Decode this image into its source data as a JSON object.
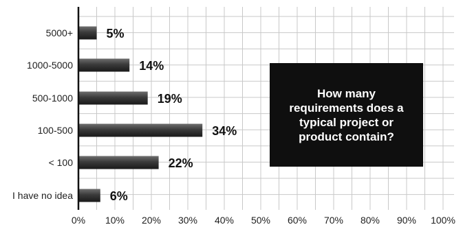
{
  "chart_data": {
    "type": "bar",
    "orientation": "horizontal",
    "title": "How many requirements does a typical project or product contain?",
    "categories": [
      "5000+",
      "1000-5000",
      "500-1000",
      "100-500",
      "< 100",
      "I have no idea"
    ],
    "values": [
      5,
      14,
      19,
      34,
      22,
      6
    ],
    "value_labels": [
      "5%",
      "14%",
      "19%",
      "34%",
      "22%",
      "6%"
    ],
    "xlim": [
      0,
      100
    ],
    "xticks": [
      0,
      10,
      20,
      30,
      40,
      50,
      60,
      70,
      80,
      90,
      100
    ],
    "xtick_labels": [
      "0%",
      "10%",
      "20%",
      "30%",
      "40%",
      "50%",
      "60%",
      "70%",
      "80%",
      "90%",
      "100%"
    ],
    "xlabel": "",
    "ylabel": "",
    "grid": true,
    "bar_color_light": "#6e6e6e",
    "bar_color_dark": "#1a1a1a"
  },
  "callout": {
    "text": "How many requirements does a typical project or product contain?"
  }
}
